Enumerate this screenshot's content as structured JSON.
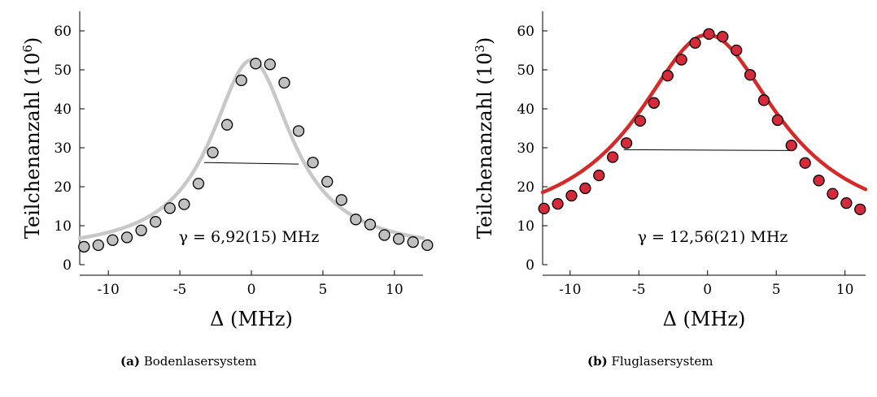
{
  "chart_data": [
    {
      "type": "scatter",
      "ylabel": "Teilchenanzahl (10",
      "ylabel_exp": "6",
      "xlabel": "Δ (MHz)",
      "xlim": [
        -12,
        12
      ],
      "ylim": [
        0,
        65
      ],
      "xticks": [
        -10,
        -5,
        0,
        5,
        10
      ],
      "xtick_labels": [
        "-10",
        "-5",
        "0",
        "5",
        "10"
      ],
      "yticks": [
        0,
        10,
        20,
        30,
        40,
        50,
        60
      ],
      "ytick_labels": [
        "0",
        "10",
        "20",
        "30",
        "40",
        "50",
        "60"
      ],
      "annotation": "γ = 6,92(15) MHz",
      "fwhm_line": {
        "x": [
          -3.3,
          3.3
        ],
        "y": [
          26.2,
          25.8
        ]
      },
      "fit": {
        "type": "lorentzian",
        "amplitude": 49.5,
        "center": 0,
        "fwhm": 6.92,
        "offset": 3.0,
        "color": "#c8c8c8"
      },
      "marker_color": "#c0c0c0",
      "series": [
        {
          "x": [
            -11.7,
            -10.7,
            -9.7,
            -8.7,
            -7.7,
            -6.7,
            -5.7,
            -4.7,
            -3.7,
            -2.7,
            -1.7,
            -0.7,
            0.3,
            1.3,
            2.3,
            3.3,
            4.3,
            5.3,
            6.3,
            7.3,
            8.3,
            9.3,
            10.3,
            11.3,
            12.3
          ],
          "y": [
            4.6,
            5.0,
            6.3,
            7.0,
            8.8,
            11.0,
            14.5,
            15.5,
            20.8,
            28.8,
            35.9,
            47.3,
            51.6,
            51.4,
            46.7,
            34.3,
            26.2,
            21.3,
            16.6,
            11.6,
            10.3,
            7.6,
            6.6,
            5.8,
            5.0
          ]
        }
      ],
      "caption_label": "(a)",
      "caption_text": "Bodenlasersystem"
    },
    {
      "type": "scatter",
      "ylabel": "Teilchenanzahl (10",
      "ylabel_exp": "3",
      "xlabel": "Δ (MHz)",
      "xlim": [
        -12,
        11.5
      ],
      "ylim": [
        0,
        65
      ],
      "xticks": [
        -10,
        -5,
        0,
        5,
        10
      ],
      "xtick_labels": [
        "-10",
        "-5",
        "0",
        "5",
        "10"
      ],
      "yticks": [
        0,
        10,
        20,
        30,
        40,
        50,
        60
      ],
      "ytick_labels": [
        "0",
        "10",
        "20",
        "30",
        "40",
        "50",
        "60"
      ],
      "annotation": "γ = 12,56(21) MHz",
      "fwhm_line": {
        "x": [
          -6.1,
          6.1
        ],
        "y": [
          29.5,
          29.3
        ]
      },
      "fit": {
        "type": "lorentzian",
        "amplitude": 51.5,
        "center": 0,
        "fwhm": 12.56,
        "offset": 7.5,
        "color": "#d42a2a"
      },
      "marker_color": "#d42a3a",
      "series": [
        {
          "x": [
            -11.9,
            -10.9,
            -9.9,
            -8.9,
            -7.9,
            -6.9,
            -5.9,
            -4.9,
            -3.9,
            -2.9,
            -1.9,
            -0.9,
            0.1,
            1.1,
            2.1,
            3.1,
            4.1,
            5.1,
            6.1,
            7.1,
            8.1,
            9.1,
            10.1,
            11.1
          ],
          "y": [
            14.4,
            15.6,
            17.7,
            19.6,
            22.9,
            27.6,
            31.2,
            36.9,
            41.5,
            48.5,
            52.6,
            56.9,
            59.2,
            58.5,
            55.0,
            48.7,
            42.2,
            37.1,
            30.6,
            26.1,
            21.6,
            18.2,
            15.8,
            14.2
          ]
        }
      ],
      "caption_label": "(b)",
      "caption_text": "Fluglasersystem"
    }
  ]
}
